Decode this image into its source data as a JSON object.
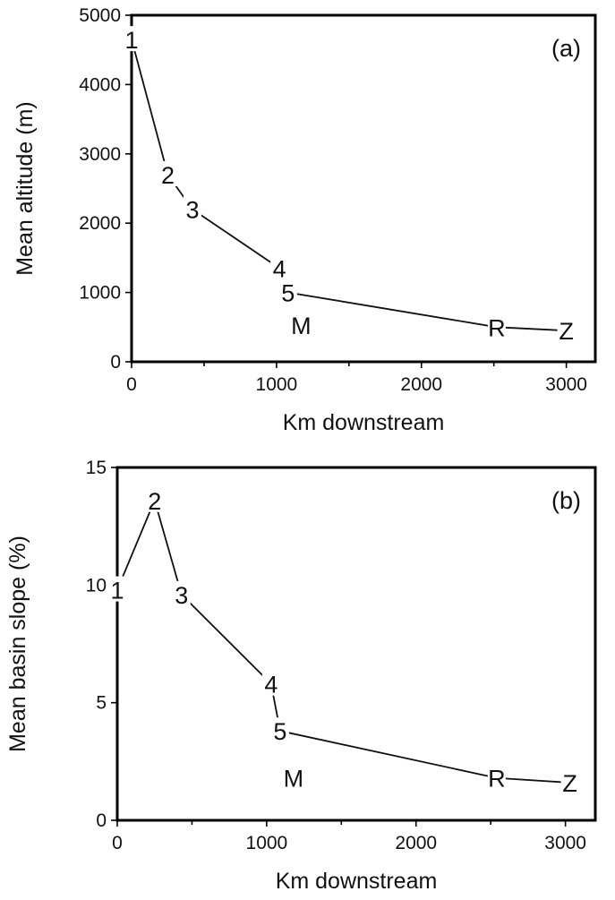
{
  "chart_data": [
    {
      "type": "line",
      "panel_label": "(a)",
      "xlabel": "Km downstream",
      "ylabel": "Mean altitude (m)",
      "xlim": [
        0,
        3200
      ],
      "ylim": [
        0,
        5000
      ],
      "xticks": [
        0,
        1000,
        2000,
        3000
      ],
      "yticks": [
        0,
        1000,
        2000,
        3000,
        4000,
        5000
      ],
      "grid": false,
      "points": [
        {
          "label": "1",
          "x": 0,
          "y": 4650
        },
        {
          "label": "2",
          "x": 250,
          "y": 2700
        },
        {
          "label": "3",
          "x": 420,
          "y": 2200
        },
        {
          "label": "4",
          "x": 1020,
          "y": 1350
        },
        {
          "label": "5",
          "x": 1080,
          "y": 1000
        },
        {
          "label": "R",
          "x": 2520,
          "y": 500
        },
        {
          "label": "Z",
          "x": 3000,
          "y": 450
        }
      ],
      "segments": [
        [
          0,
          1
        ],
        [
          1,
          2
        ],
        [
          2,
          3
        ],
        [
          3,
          4
        ],
        [
          4,
          5
        ],
        [
          5,
          6
        ]
      ],
      "annotations": [
        {
          "text": "M",
          "x": 1170,
          "y": 530
        }
      ]
    },
    {
      "type": "line",
      "panel_label": "(b)",
      "xlabel": "Km downstream",
      "ylabel": "Mean basin slope (%)",
      "xlim": [
        0,
        3200
      ],
      "ylim": [
        0,
        15
      ],
      "xticks": [
        0,
        1000,
        2000,
        3000
      ],
      "yticks": [
        0,
        5,
        10,
        15
      ],
      "grid": false,
      "points": [
        {
          "label": "1",
          "x": 0,
          "y": 9.8
        },
        {
          "label": "2",
          "x": 250,
          "y": 13.6
        },
        {
          "label": "3",
          "x": 430,
          "y": 9.6
        },
        {
          "label": "4",
          "x": 1030,
          "y": 5.8
        },
        {
          "label": "5",
          "x": 1090,
          "y": 3.8
        },
        {
          "label": "R",
          "x": 2540,
          "y": 1.8
        },
        {
          "label": "Z",
          "x": 3030,
          "y": 1.6
        }
      ],
      "segments": [
        [
          0,
          1
        ],
        [
          1,
          2
        ],
        [
          2,
          3
        ],
        [
          3,
          4
        ],
        [
          4,
          5
        ],
        [
          5,
          6
        ]
      ],
      "annotations": [
        {
          "text": "M",
          "x": 1180,
          "y": 1.8
        }
      ]
    }
  ]
}
